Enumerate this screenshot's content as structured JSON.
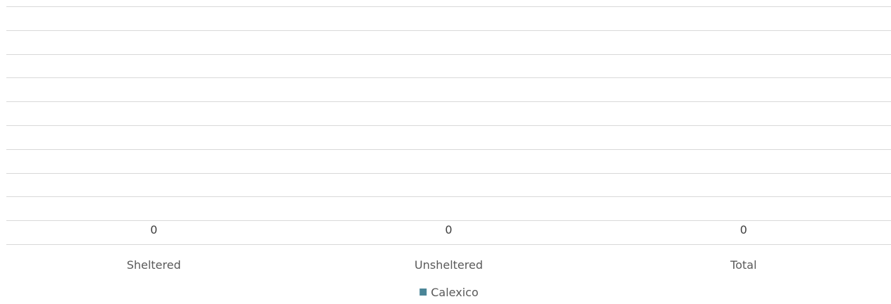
{
  "chart_data": {
    "type": "bar",
    "title": "",
    "xlabel": "",
    "ylabel": "",
    "categories": [
      "Sheltered",
      "Unsheltered",
      "Total"
    ],
    "series": [
      {
        "name": "Calexico",
        "values": [
          0,
          0,
          0
        ],
        "color": "#4a8597"
      }
    ],
    "data_labels": [
      "0",
      "0",
      "0"
    ],
    "gridlines": true,
    "legend_position": "bottom-center",
    "colors": {
      "gridline": "#d9d9d9",
      "text": "#595959",
      "data_label": "#404040"
    }
  }
}
